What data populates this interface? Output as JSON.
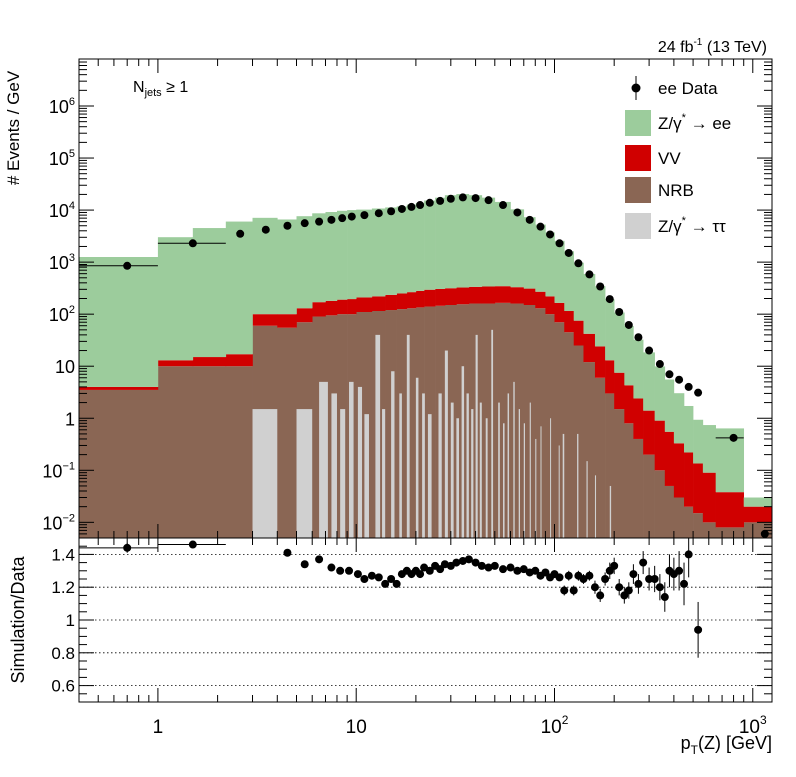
{
  "chart_data": [
    {
      "type": "area",
      "panel": "main",
      "header_right": "24 fb",
      "header_right_sup": "-1",
      "header_right_tail": " (13 TeV)",
      "ylabel": "# Events / GeV",
      "annotation_main": "N",
      "annotation_sub": "jets",
      "annotation_tail": " ≥ 1",
      "xlog": true,
      "ylog": true,
      "xlim": [
        0.4,
        1250
      ],
      "ylim": [
        0.005,
        8000000
      ],
      "y_ticks": [
        {
          "v": 0.01,
          "base": "10",
          "exp": "−2"
        },
        {
          "v": 0.1,
          "base": "10",
          "exp": "−1"
        },
        {
          "v": 1,
          "base": "1",
          "exp": ""
        },
        {
          "v": 10,
          "base": "10",
          "exp": ""
        },
        {
          "v": 100,
          "base": "10",
          "exp": "2"
        },
        {
          "v": 1000,
          "base": "10",
          "exp": "3"
        },
        {
          "v": 10000,
          "base": "10",
          "exp": "4"
        },
        {
          "v": 100000,
          "base": "10",
          "exp": "5"
        },
        {
          "v": 1000000,
          "base": "10",
          "exp": "6"
        }
      ],
      "legend_position": "top-right",
      "legend": [
        {
          "key": "data",
          "label": "ee Data",
          "color": "#000000"
        },
        {
          "key": "zee",
          "label": "Z/γ",
          "label_sup": "*",
          "label_tail": " → ee",
          "color": "#9ccc9c"
        },
        {
          "key": "vv",
          "label": "VV",
          "color": "#d00000"
        },
        {
          "key": "nrb",
          "label": "NRB",
          "color": "#8a6654"
        },
        {
          "key": "ztt",
          "label": "Z/γ",
          "label_sup": "*",
          "label_tail": " → ττ",
          "color": "#d0d0d0"
        }
      ],
      "bin_edges": [
        0.4,
        1,
        1.5,
        2.2,
        3,
        4,
        5,
        6,
        7,
        8,
        9,
        10,
        12,
        14,
        16,
        18,
        20,
        22,
        25,
        28,
        32,
        37,
        43,
        50,
        60,
        70,
        80,
        90,
        100,
        112,
        125,
        140,
        160,
        180,
        200,
        225,
        250,
        280,
        320,
        360,
        400,
        450,
        500,
        560,
        650,
        900,
        1250
      ],
      "series": [
        {
          "name": "NRB",
          "key": "nrb",
          "values": [
            3.5,
            10,
            10,
            10,
            60,
            55,
            70,
            90,
            95,
            100,
            100,
            110,
            115,
            120,
            125,
            130,
            135,
            140,
            145,
            150,
            155,
            160,
            160,
            165,
            160,
            150,
            130,
            100,
            70,
            45,
            25,
            12,
            6,
            3,
            1.5,
            0.8,
            0.4,
            0.2,
            0.1,
            0.05,
            0.03,
            0.02,
            0.015,
            0.01,
            0.008,
            0.01
          ]
        },
        {
          "name": "VV",
          "key": "vv",
          "values": [
            0.5,
            3,
            5,
            7,
            40,
            45,
            60,
            80,
            85,
            90,
            95,
            100,
            105,
            115,
            125,
            135,
            145,
            155,
            160,
            165,
            170,
            175,
            180,
            180,
            170,
            160,
            140,
            120,
            95,
            70,
            50,
            30,
            18,
            10,
            6,
            3.5,
            2,
            1.2,
            0.8,
            0.5,
            0.3,
            0.2,
            0.12,
            0.08,
            0.03,
            0.01
          ]
        },
        {
          "name": "Z/γ* → ee",
          "key": "zee",
          "values": [
            1250,
            3000,
            4500,
            6000,
            7000,
            6500,
            7500,
            8500,
            9000,
            9500,
            9800,
            10000,
            10500,
            11000,
            11500,
            12500,
            13500,
            15000,
            17000,
            19000,
            20000,
            19000,
            17000,
            14000,
            10000,
            7000,
            5000,
            3500,
            2400,
            1500,
            900,
            550,
            320,
            180,
            100,
            55,
            30,
            17,
            9,
            5,
            2.7,
            1.5,
            0.8,
            0.65,
            0.6,
            0.01
          ]
        }
      ],
      "ztt_spikes": [
        {
          "x": [
            3,
            4
          ],
          "v": 1.5
        },
        {
          "x": [
            5,
            6
          ],
          "v": 1.5
        },
        {
          "x": [
            6.5,
            7.2
          ],
          "v": 5
        },
        {
          "x": [
            7.5,
            8
          ],
          "v": 3
        },
        {
          "x": [
            8.3,
            8.8
          ],
          "v": 1.5
        },
        {
          "x": [
            9.2,
            9.7
          ],
          "v": 5
        },
        {
          "x": [
            10.2,
            10.7
          ],
          "v": 4
        },
        {
          "x": [
            11,
            11.6
          ],
          "v": 1.2
        },
        {
          "x": [
            12.5,
            13.2
          ],
          "v": 40
        },
        {
          "x": [
            13.5,
            14
          ],
          "v": 1.5
        },
        {
          "x": [
            15,
            15.6
          ],
          "v": 8
        },
        {
          "x": [
            16.5,
            17
          ],
          "v": 3
        },
        {
          "x": [
            18,
            18.6
          ],
          "v": 40
        },
        {
          "x": [
            20,
            20.6
          ],
          "v": 6
        },
        {
          "x": [
            21.5,
            22.2
          ],
          "v": 3
        },
        {
          "x": [
            23,
            24
          ],
          "v": 1.2
        },
        {
          "x": [
            26,
            27
          ],
          "v": 3
        },
        {
          "x": [
            28,
            29
          ],
          "v": 20
        },
        {
          "x": [
            30,
            31
          ],
          "v": 2
        },
        {
          "x": [
            32,
            33
          ],
          "v": 1
        },
        {
          "x": [
            34,
            35
          ],
          "v": 10
        },
        {
          "x": [
            36,
            37
          ],
          "v": 3
        },
        {
          "x": [
            38,
            39
          ],
          "v": 1.5
        },
        {
          "x": [
            40,
            41
          ],
          "v": 40
        },
        {
          "x": [
            42,
            43
          ],
          "v": 2
        },
        {
          "x": [
            45,
            46
          ],
          "v": 1
        },
        {
          "x": [
            48,
            49
          ],
          "v": 50
        },
        {
          "x": [
            52,
            53
          ],
          "v": 2
        },
        {
          "x": [
            55,
            56
          ],
          "v": 0.8
        },
        {
          "x": [
            58,
            59
          ],
          "v": 3
        },
        {
          "x": [
            62,
            63
          ],
          "v": 5
        },
        {
          "x": [
            66,
            67
          ],
          "v": 1.5
        },
        {
          "x": [
            70,
            71
          ],
          "v": 0.8
        },
        {
          "x": [
            75,
            76
          ],
          "v": 2
        },
        {
          "x": [
            80,
            81
          ],
          "v": 0.4
        },
        {
          "x": [
            85,
            86
          ],
          "v": 0.7
        },
        {
          "x": [
            95,
            96
          ],
          "v": 1
        },
        {
          "x": [
            105,
            106
          ],
          "v": 0.3
        },
        {
          "x": [
            110,
            112
          ],
          "v": 0.5
        },
        {
          "x": [
            130,
            132
          ],
          "v": 0.5
        },
        {
          "x": [
            145,
            147
          ],
          "v": 0.15
        },
        {
          "x": [
            160,
            162
          ],
          "v": 0.08
        },
        {
          "x": [
            190,
            193
          ],
          "v": 0.05
        }
      ],
      "data_points": [
        {
          "x": 0.7,
          "y": 850,
          "xerr": [
            0.4,
            1
          ]
        },
        {
          "x": 1.5,
          "y": 2300,
          "xerr": [
            1,
            2.2
          ]
        },
        {
          "x": 2.6,
          "y": 3500
        },
        {
          "x": 3.5,
          "y": 4200
        },
        {
          "x": 4.5,
          "y": 5000
        },
        {
          "x": 5.5,
          "y": 5600
        },
        {
          "x": 6.5,
          "y": 6000
        },
        {
          "x": 7.5,
          "y": 6500
        },
        {
          "x": 8.5,
          "y": 7000
        },
        {
          "x": 9.5,
          "y": 7500
        },
        {
          "x": 11,
          "y": 8000
        },
        {
          "x": 13,
          "y": 8700
        },
        {
          "x": 15,
          "y": 9500
        },
        {
          "x": 17,
          "y": 10500
        },
        {
          "x": 19,
          "y": 11500
        },
        {
          "x": 21,
          "y": 12500
        },
        {
          "x": 23.5,
          "y": 13800
        },
        {
          "x": 26.5,
          "y": 15000
        },
        {
          "x": 30,
          "y": 16500
        },
        {
          "x": 34.5,
          "y": 17500
        },
        {
          "x": 40,
          "y": 17000
        },
        {
          "x": 46.5,
          "y": 15500
        },
        {
          "x": 55,
          "y": 12500
        },
        {
          "x": 65,
          "y": 9000
        },
        {
          "x": 75,
          "y": 6500
        },
        {
          "x": 85,
          "y": 4800
        },
        {
          "x": 95,
          "y": 3400
        },
        {
          "x": 106,
          "y": 2300
        },
        {
          "x": 118,
          "y": 1500
        },
        {
          "x": 132,
          "y": 950
        },
        {
          "x": 150,
          "y": 580
        },
        {
          "x": 170,
          "y": 340
        },
        {
          "x": 190,
          "y": 195
        },
        {
          "x": 212,
          "y": 110
        },
        {
          "x": 237,
          "y": 62
        },
        {
          "x": 265,
          "y": 36
        },
        {
          "x": 300,
          "y": 20
        },
        {
          "x": 340,
          "y": 11
        },
        {
          "x": 380,
          "y": 7
        },
        {
          "x": 425,
          "y": 5.5
        },
        {
          "x": 475,
          "y": 4
        },
        {
          "x": 530,
          "y": 3.1
        },
        {
          "x": 800,
          "y": 0.42,
          "xerr": [
            650,
            900
          ]
        },
        {
          "x": 1150,
          "y": 0.006
        }
      ]
    },
    {
      "type": "scatter",
      "panel": "ratio",
      "ylabel": "Simulation/Data",
      "xlabel_main": "p",
      "xlabel_sub": "T",
      "xlabel_tail": "(Z) [GeV]",
      "xlog": true,
      "xlim": [
        0.4,
        1250
      ],
      "ylim": [
        0.5,
        1.5
      ],
      "y_ticks": [
        "0.6",
        "0.8",
        "1",
        "1.2",
        "1.4"
      ],
      "x_ticks": [
        {
          "v": 1,
          "base": "1",
          "exp": ""
        },
        {
          "v": 10,
          "base": "10",
          "exp": ""
        },
        {
          "v": 100,
          "base": "10",
          "exp": "2"
        },
        {
          "v": 1000,
          "base": "10",
          "exp": "3"
        }
      ],
      "grid": true,
      "points": [
        {
          "x": 0.7,
          "y": 1.44,
          "err": 0.03,
          "xerr": [
            0.4,
            1
          ]
        },
        {
          "x": 1.5,
          "y": 1.46,
          "err": 0.02,
          "xerr": [
            1,
            2.2
          ]
        },
        {
          "x": 4.5,
          "y": 1.41,
          "err": 0.02
        },
        {
          "x": 5.5,
          "y": 1.34,
          "err": 0.02
        },
        {
          "x": 6.5,
          "y": 1.37,
          "err": 0.02
        },
        {
          "x": 7.5,
          "y": 1.32,
          "err": 0.02
        },
        {
          "x": 8.3,
          "y": 1.3,
          "err": 0.02
        },
        {
          "x": 9.2,
          "y": 1.3,
          "err": 0.02
        },
        {
          "x": 10.2,
          "y": 1.28,
          "err": 0.02
        },
        {
          "x": 11,
          "y": 1.25,
          "err": 0.02
        },
        {
          "x": 12,
          "y": 1.27,
          "err": 0.02
        },
        {
          "x": 13,
          "y": 1.26,
          "err": 0.02
        },
        {
          "x": 14,
          "y": 1.22,
          "err": 0.02
        },
        {
          "x": 15,
          "y": 1.25,
          "err": 0.02
        },
        {
          "x": 16,
          "y": 1.22,
          "err": 0.02
        },
        {
          "x": 17,
          "y": 1.28,
          "err": 0.02
        },
        {
          "x": 18,
          "y": 1.3,
          "err": 0.02
        },
        {
          "x": 19,
          "y": 1.28,
          "err": 0.02
        },
        {
          "x": 20,
          "y": 1.3,
          "err": 0.02
        },
        {
          "x": 21,
          "y": 1.28,
          "err": 0.02
        },
        {
          "x": 22,
          "y": 1.32,
          "err": 0.02
        },
        {
          "x": 23.5,
          "y": 1.3,
          "err": 0.02
        },
        {
          "x": 25,
          "y": 1.33,
          "err": 0.02
        },
        {
          "x": 26.5,
          "y": 1.31,
          "err": 0.02
        },
        {
          "x": 28,
          "y": 1.34,
          "err": 0.02
        },
        {
          "x": 30,
          "y": 1.33,
          "err": 0.02
        },
        {
          "x": 32,
          "y": 1.35,
          "err": 0.02
        },
        {
          "x": 34.5,
          "y": 1.36,
          "err": 0.02
        },
        {
          "x": 37,
          "y": 1.37,
          "err": 0.02
        },
        {
          "x": 40,
          "y": 1.35,
          "err": 0.02
        },
        {
          "x": 43,
          "y": 1.33,
          "err": 0.02
        },
        {
          "x": 46.5,
          "y": 1.32,
          "err": 0.02
        },
        {
          "x": 50,
          "y": 1.33,
          "err": 0.02
        },
        {
          "x": 55,
          "y": 1.31,
          "err": 0.02
        },
        {
          "x": 60,
          "y": 1.32,
          "err": 0.02
        },
        {
          "x": 65,
          "y": 1.3,
          "err": 0.02
        },
        {
          "x": 70,
          "y": 1.31,
          "err": 0.02
        },
        {
          "x": 75,
          "y": 1.29,
          "err": 0.02
        },
        {
          "x": 80,
          "y": 1.3,
          "err": 0.02
        },
        {
          "x": 85,
          "y": 1.27,
          "err": 0.02
        },
        {
          "x": 90,
          "y": 1.29,
          "err": 0.02
        },
        {
          "x": 95,
          "y": 1.26,
          "err": 0.02
        },
        {
          "x": 100,
          "y": 1.28,
          "err": 0.02
        },
        {
          "x": 106,
          "y": 1.26,
          "err": 0.02
        },
        {
          "x": 112,
          "y": 1.18,
          "err": 0.03
        },
        {
          "x": 118,
          "y": 1.27,
          "err": 0.03
        },
        {
          "x": 125,
          "y": 1.18,
          "err": 0.03
        },
        {
          "x": 132,
          "y": 1.27,
          "err": 0.03
        },
        {
          "x": 140,
          "y": 1.25,
          "err": 0.03
        },
        {
          "x": 150,
          "y": 1.27,
          "err": 0.03
        },
        {
          "x": 160,
          "y": 1.2,
          "err": 0.04
        },
        {
          "x": 170,
          "y": 1.15,
          "err": 0.04
        },
        {
          "x": 180,
          "y": 1.25,
          "err": 0.04
        },
        {
          "x": 190,
          "y": 1.3,
          "err": 0.05
        },
        {
          "x": 200,
          "y": 1.33,
          "err": 0.05
        },
        {
          "x": 212,
          "y": 1.2,
          "err": 0.05
        },
        {
          "x": 225,
          "y": 1.15,
          "err": 0.05
        },
        {
          "x": 237,
          "y": 1.18,
          "err": 0.05
        },
        {
          "x": 250,
          "y": 1.28,
          "err": 0.06
        },
        {
          "x": 265,
          "y": 1.22,
          "err": 0.06
        },
        {
          "x": 280,
          "y": 1.35,
          "err": 0.07
        },
        {
          "x": 300,
          "y": 1.25,
          "err": 0.07
        },
        {
          "x": 320,
          "y": 1.25,
          "err": 0.08
        },
        {
          "x": 340,
          "y": 1.2,
          "err": 0.08
        },
        {
          "x": 360,
          "y": 1.14,
          "err": 0.09
        },
        {
          "x": 380,
          "y": 1.3,
          "err": 0.1
        },
        {
          "x": 400,
          "y": 1.28,
          "err": 0.1
        },
        {
          "x": 425,
          "y": 1.3,
          "err": 0.12
        },
        {
          "x": 450,
          "y": 1.22,
          "err": 0.13
        },
        {
          "x": 475,
          "y": 1.4,
          "err": 0.14
        },
        {
          "x": 530,
          "y": 0.94,
          "err": 0.17
        }
      ]
    }
  ]
}
